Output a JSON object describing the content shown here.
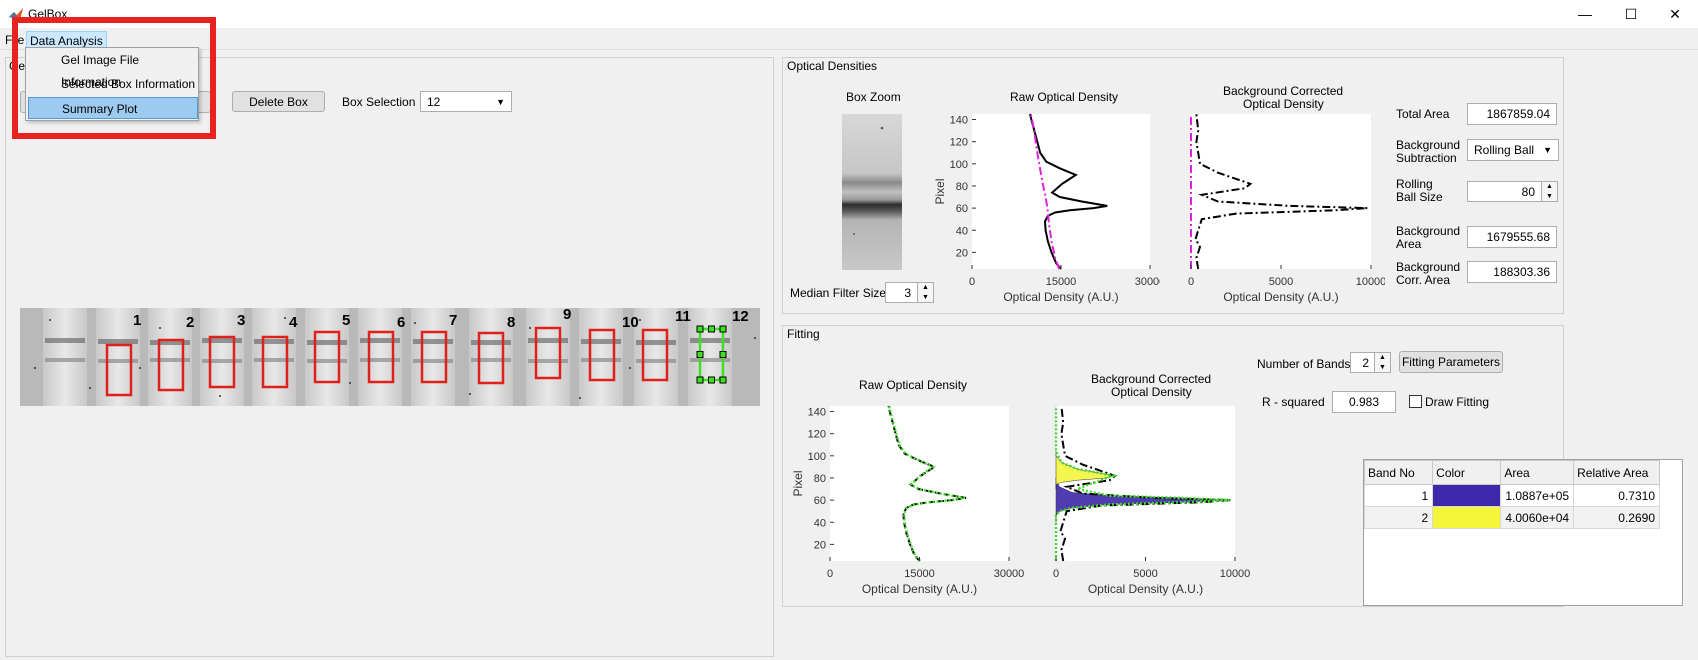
{
  "window": {
    "title": "GelBox",
    "minimize_glyph": "—",
    "maximize_glyph": "☐",
    "close_glyph": "✕"
  },
  "menubar": {
    "file_label": "File",
    "data_analysis_label": "Data Analysis"
  },
  "data_analysis_menu": {
    "items": [
      "Gel Image File Information",
      "Selected Box Information",
      "Summary Plot"
    ],
    "selected_index": 2
  },
  "gel_panel": {
    "title": "Gel",
    "delete_box_label": "Delete Box",
    "box_selection_label": "Box Selection",
    "box_selection_value": "12",
    "lane_numbers": [
      "1",
      "2",
      "3",
      "4",
      "5",
      "6",
      "7",
      "8",
      "9",
      "10",
      "11",
      "12"
    ],
    "selected_lane": "12"
  },
  "optical_densities": {
    "title": "Optical Densities",
    "box_zoom_title": "Box Zoom",
    "raw_title": "Raw Optical Density",
    "bg_title_line1": "Background Corrected",
    "bg_title_line2": "Optical Density",
    "median_filter_label": "Median Filter Size",
    "median_filter_value": "3",
    "total_area_label": "Total Area",
    "total_area_value": "1867859.04",
    "bg_subtraction_label_line1": "Background",
    "bg_subtraction_label_line2": "Subtraction",
    "bg_subtraction_value": "Rolling Ball",
    "rolling_ball_label_line1": "Rolling",
    "rolling_ball_label_line2": "Ball Size",
    "rolling_ball_value": "80",
    "bg_area_label_line1": "Background",
    "bg_area_label_line2": "Area",
    "bg_area_value": "1679555.68",
    "bg_corr_area_label_line1": "Background",
    "bg_corr_area_label_line2": "Corr. Area",
    "bg_corr_area_value": "188303.36"
  },
  "fitting": {
    "title": "Fitting",
    "raw_title": "Raw Optical Density",
    "bg_title_line1": "Background Corrected",
    "bg_title_line2": "Optical Density",
    "number_of_bands_label": "Number of Bands",
    "number_of_bands_value": "2",
    "fitting_parameters_label": "Fitting Parameters",
    "r_squared_label": "R - squared",
    "r_squared_value": "0.983",
    "draw_fitting_label": "Draw Fitting",
    "table": {
      "headers": [
        "Band No",
        "Color",
        "Area",
        "Relative Area"
      ],
      "rows": [
        {
          "band_no": "1",
          "color": "#3c28a8",
          "area": "1.0887e+05",
          "relative_area": "0.7310"
        },
        {
          "band_no": "2",
          "color": "#f5f53c",
          "area": "4.0060e+04",
          "relative_area": "0.2690"
        }
      ]
    }
  },
  "chart_data": [
    {
      "type": "line",
      "id": "od-raw",
      "title": "Raw Optical Density",
      "xlabel": "Optical Density (A.U.)",
      "ylabel": "Pixel",
      "xlim": [
        0,
        30000
      ],
      "ylim": [
        5,
        145
      ],
      "xticks": [
        "0",
        "15000",
        "30000"
      ],
      "yticks": [
        "20",
        "40",
        "60",
        "80",
        "100",
        "120",
        "140"
      ],
      "series": [
        {
          "color": "#000000",
          "style": "solid",
          "x": [
            15000,
            14200,
            13400,
            12800,
            12400,
            12300,
            12800,
            14000,
            16500,
            20500,
            22800,
            18500,
            14800,
            13500,
            15200,
            17500,
            14800,
            12500,
            11500,
            11000,
            10500,
            10000,
            9800
          ],
          "y": [
            5,
            10,
            20,
            30,
            40,
            48,
            53,
            56,
            58,
            60,
            62,
            66,
            70,
            74,
            82,
            90,
            96,
            102,
            110,
            120,
            130,
            140,
            145
          ]
        },
        {
          "color": "#e020e0",
          "style": "dashdot",
          "x": [
            14700,
            14000,
            13400,
            13000,
            12700,
            12400,
            12000,
            11500,
            11000,
            10600,
            10200,
            9900
          ],
          "y": [
            5,
            15,
            30,
            45,
            60,
            70,
            80,
            95,
            110,
            125,
            138,
            145
          ]
        }
      ]
    },
    {
      "type": "line",
      "id": "od-bg",
      "title": "Background Corrected Optical Density",
      "xlabel": "Optical Density (A.U.)",
      "xlim": [
        0,
        10000
      ],
      "ylim": [
        5,
        145
      ],
      "xticks": [
        "0",
        "5000",
        "10000"
      ],
      "series": [
        {
          "color": "#000000",
          "style": "dashdot",
          "x": [
            400,
            300,
            500,
            250,
            400,
            600,
            2500,
            8000,
            9800,
            5500,
            1500,
            600,
            3000,
            3300,
            1500,
            500,
            400,
            300,
            400,
            300
          ],
          "y": [
            5,
            15,
            25,
            32,
            40,
            50,
            55,
            58,
            60,
            62,
            66,
            72,
            78,
            82,
            92,
            100,
            110,
            120,
            130,
            145
          ]
        },
        {
          "color": "#e020e0",
          "style": "dashdot",
          "x": [
            0,
            0,
            0,
            0
          ],
          "y": [
            5,
            50,
            100,
            145
          ]
        }
      ]
    },
    {
      "type": "area",
      "id": "fit-raw",
      "title": "Raw Optical Density",
      "xlabel": "Optical Density (A.U.)",
      "ylabel": "Pixel",
      "xlim": [
        0,
        30000
      ],
      "ylim": [
        5,
        145
      ],
      "xticks": [
        "0",
        "15000",
        "30000"
      ],
      "yticks": [
        "20",
        "40",
        "60",
        "80",
        "100",
        "120",
        "140"
      ],
      "series": [
        {
          "color": "#000000",
          "style": "dashed",
          "x": [
            15000,
            14200,
            13400,
            12800,
            12400,
            12300,
            12800,
            14000,
            16500,
            20500,
            22800,
            18500,
            14800,
            13500,
            15200,
            17500,
            14800,
            12500,
            11500,
            11000,
            10500,
            10000,
            9800
          ],
          "y": [
            5,
            10,
            20,
            30,
            40,
            48,
            53,
            56,
            58,
            60,
            62,
            66,
            70,
            74,
            82,
            90,
            96,
            102,
            110,
            120,
            130,
            140,
            145
          ]
        },
        {
          "color": "#44d830",
          "style": "dotted",
          "x": [
            15100,
            14300,
            13500,
            12900,
            12500,
            12400,
            12900,
            14100,
            16600,
            20400,
            22600,
            18400,
            14900,
            13600,
            15100,
            17300,
            14900,
            12600,
            11600,
            11100,
            10600,
            10100,
            9900
          ],
          "y": [
            5,
            10,
            20,
            30,
            40,
            48,
            53,
            56,
            58,
            60,
            62,
            66,
            70,
            74,
            82,
            90,
            96,
            102,
            110,
            120,
            130,
            140,
            145
          ]
        }
      ]
    },
    {
      "type": "area",
      "id": "fit-bg",
      "title": "Background Corrected Optical Density",
      "xlabel": "Optical Density (A.U.)",
      "xlim": [
        0,
        10000
      ],
      "ylim": [
        5,
        145
      ],
      "xticks": [
        "0",
        "5000",
        "10000"
      ],
      "series": [
        {
          "name": "",
          "color": "#3c28a8",
          "fill": true,
          "x": [
            0,
            0,
            200,
            900,
            3000,
            7000,
            9600,
            7000,
            3000,
            900,
            200,
            0,
            0
          ],
          "y": [
            40,
            46,
            50,
            53,
            56,
            58,
            60,
            62,
            64,
            67,
            72,
            78,
            80
          ]
        },
        {
          "name": "",
          "color": "#f5f53c",
          "fill": true,
          "x": [
            0,
            0,
            300,
            1200,
            2800,
            3200,
            2600,
            1200,
            300,
            0,
            0
          ],
          "y": [
            70,
            74,
            76,
            78,
            80,
            82,
            84,
            88,
            94,
            100,
            104
          ]
        },
        {
          "color": "#000000",
          "style": "dashdot",
          "x": [
            400,
            300,
            500,
            250,
            400,
            600,
            2500,
            8000,
            9800,
            5500,
            1500,
            600,
            3000,
            3300,
            1500,
            500,
            400,
            300,
            400,
            300
          ],
          "y": [
            5,
            15,
            25,
            32,
            40,
            50,
            55,
            58,
            60,
            62,
            66,
            72,
            78,
            82,
            92,
            100,
            110,
            120,
            130,
            145
          ]
        },
        {
          "color": "#44d830",
          "style": "dotted",
          "x": [
            0,
            0,
            200,
            900,
            3000,
            7000,
            9700,
            7000,
            3000,
            1200,
            2800,
            3200,
            2600,
            1200,
            300,
            0,
            0
          ],
          "y": [
            5,
            46,
            50,
            53,
            56,
            58,
            60,
            62,
            64,
            70,
            80,
            82,
            84,
            88,
            94,
            104,
            145
          ]
        }
      ]
    }
  ]
}
